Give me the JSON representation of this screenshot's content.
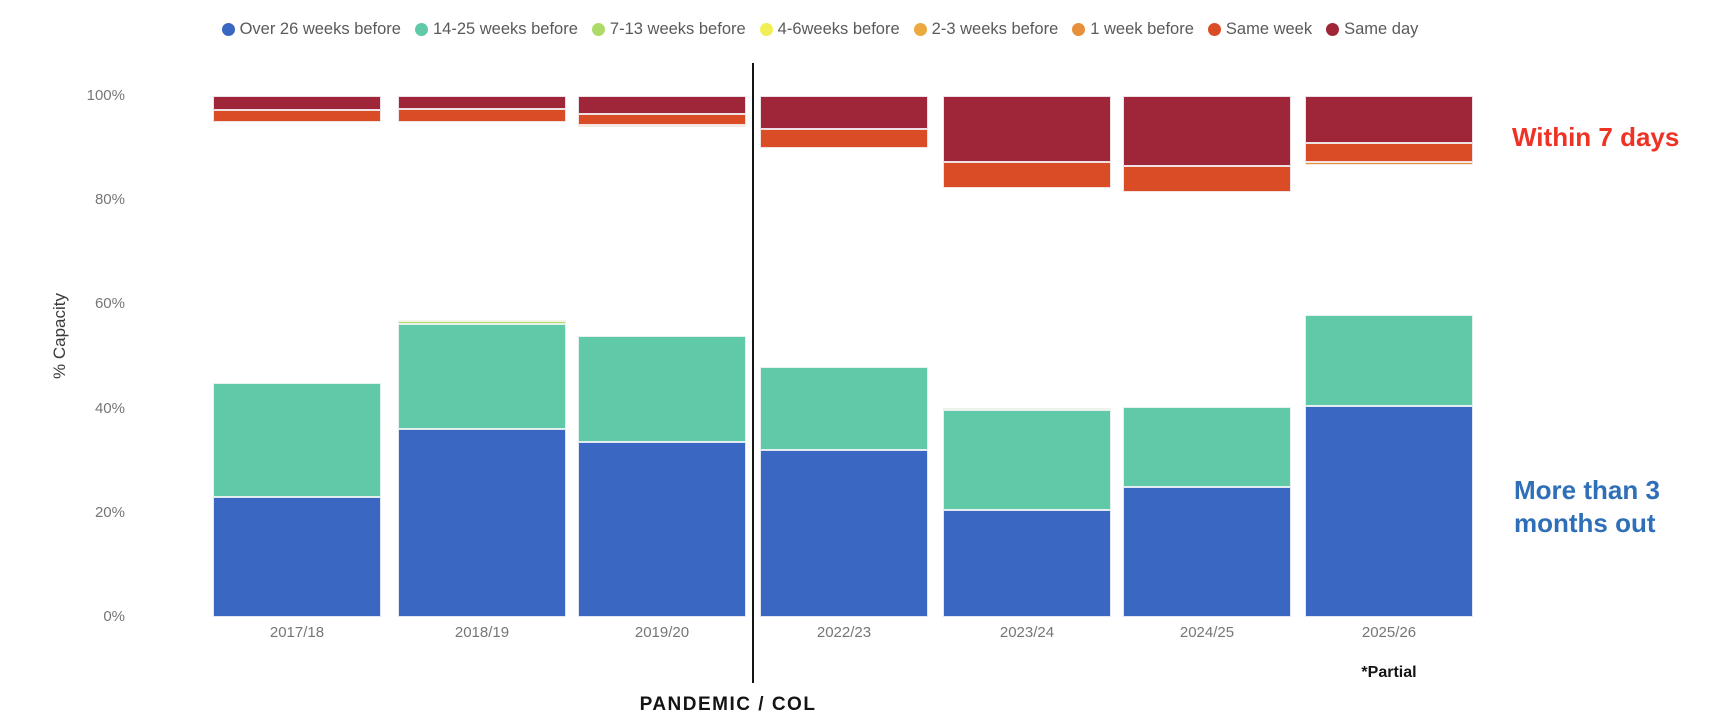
{
  "chart_data": {
    "type": "bar",
    "stacked": true,
    "ylabel": "% Capacity",
    "ylim": [
      0,
      100
    ],
    "grid": false,
    "legend_position": "top-center",
    "yticks": [
      {
        "label": "0%",
        "value": 0
      },
      {
        "label": "20%",
        "value": 20
      },
      {
        "label": "40%",
        "value": 40
      },
      {
        "label": "60%",
        "value": 60
      },
      {
        "label": "80%",
        "value": 80
      },
      {
        "label": "100%",
        "value": 100
      }
    ],
    "categories": [
      "2017/18",
      "2018/19",
      "2019/20",
      "2022/23",
      "2023/24",
      "2024/25",
      "2025/26"
    ],
    "series": [
      {
        "name": "Over 26 weeks before",
        "color": "#3A67C2",
        "group": "bottom",
        "values": [
          23,
          36,
          33.5,
          32,
          20.5,
          25,
          40.5
        ]
      },
      {
        "name": "14-25 weeks before",
        "color": "#5FC9A8",
        "group": "bottom",
        "values": [
          22,
          20.2,
          20.5,
          16,
          19.2,
          15.3,
          17.5
        ]
      },
      {
        "name": "7-13 weeks before",
        "color": "#AEDB67",
        "group": "bottom",
        "values": [
          0,
          0.6,
          0,
          0,
          0.5,
          0,
          0
        ]
      },
      {
        "name": "4-6weeks before",
        "color": "#F2EE55",
        "group": "bottom",
        "values": [
          0,
          0.2,
          0,
          0,
          0,
          0,
          0
        ]
      },
      {
        "name": "2-3 weeks before",
        "color": "#EBA93F",
        "group": "bottom",
        "values": [
          0,
          0,
          0,
          0,
          0,
          0,
          0
        ]
      },
      {
        "name": "1 week before",
        "color": "#E78F3B",
        "group": "top",
        "values": [
          0,
          0,
          0.3,
          0,
          0,
          0,
          0.5
        ]
      },
      {
        "name": "Same week",
        "color": "#D94C26",
        "group": "top",
        "values": [
          2.3,
          2.5,
          2.1,
          3.7,
          5,
          5,
          3.7
        ]
      },
      {
        "name": "Same day",
        "color": "#9E2638",
        "group": "top",
        "values": [
          2.7,
          2.5,
          3.5,
          6.3,
          12.7,
          13.5,
          9
        ]
      }
    ],
    "divider": {
      "label": "PANDEMIC / COL",
      "after_category": "2019/20"
    },
    "footnote": {
      "text": "*Partial",
      "category": "2025/26"
    },
    "annotations": [
      {
        "id": "within7",
        "text": "Within 7 days",
        "color": "#EE3224"
      },
      {
        "id": "months3",
        "text": "More than 3 months out",
        "color": "#2E6FB8"
      }
    ]
  }
}
